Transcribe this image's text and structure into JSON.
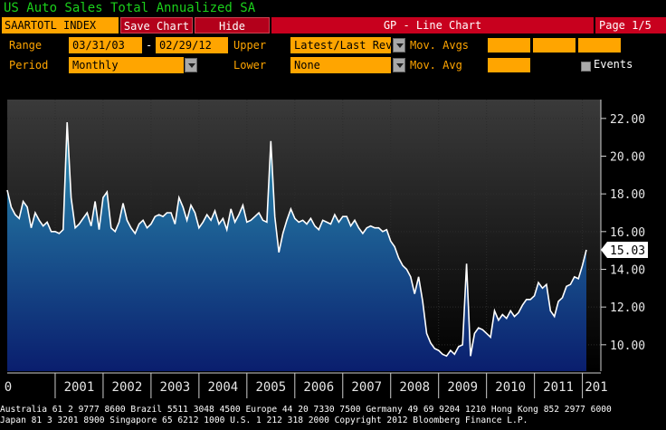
{
  "header": {
    "title": "US Auto Sales Total Annualized SA",
    "ticker": "SAARTOTL INDEX",
    "save_chart": "Save Chart",
    "hide": "Hide",
    "function": "GP - Line Chart",
    "page": "Page 1/5"
  },
  "controls": {
    "range_label": "Range",
    "start_date": "03/31/03",
    "dash": "-",
    "end_date": "02/29/12",
    "upper_label": "Upper",
    "upper_value": "Latest/Last Revi",
    "mov_avgs_label": "Mov. Avgs",
    "period_label": "Period",
    "period_value": "Monthly",
    "lower_label": "Lower",
    "lower_value": "None",
    "mov_avg_label": "Mov. Avg",
    "events_label": "Events"
  },
  "chart_data": {
    "type": "area",
    "line_color": "#ffffff",
    "fill_top_color": "#2a8fb0",
    "fill_bottom_color": "#0a1e6e",
    "ylim": [
      8.6,
      23.0
    ],
    "yticks": [
      "22.00",
      "20.00",
      "18.00",
      "16.00",
      "14.00",
      "12.00",
      "10.00"
    ],
    "ytick_values": [
      22,
      20,
      18,
      16,
      14,
      12,
      10
    ],
    "last_value_label": "15.03",
    "last_value": 15.03,
    "xtick_labels": [
      "0",
      "2001",
      "2002",
      "2003",
      "2004",
      "2005",
      "2006",
      "2007",
      "2008",
      "2009",
      "2010",
      "2011",
      "201"
    ],
    "x": [
      2000.0,
      2000.083,
      2000.167,
      2000.25,
      2000.333,
      2000.417,
      2000.5,
      2000.583,
      2000.667,
      2000.75,
      2000.833,
      2000.917,
      2001.0,
      2001.083,
      2001.167,
      2001.25,
      2001.333,
      2001.417,
      2001.5,
      2001.583,
      2001.667,
      2001.75,
      2001.833,
      2001.917,
      2002.0,
      2002.083,
      2002.167,
      2002.25,
      2002.333,
      2002.417,
      2002.5,
      2002.583,
      2002.667,
      2002.75,
      2002.833,
      2002.917,
      2003.0,
      2003.083,
      2003.167,
      2003.25,
      2003.333,
      2003.417,
      2003.5,
      2003.583,
      2003.667,
      2003.75,
      2003.833,
      2003.917,
      2004.0,
      2004.083,
      2004.167,
      2004.25,
      2004.333,
      2004.417,
      2004.5,
      2004.583,
      2004.667,
      2004.75,
      2004.833,
      2004.917,
      2005.0,
      2005.083,
      2005.167,
      2005.25,
      2005.333,
      2005.417,
      2005.5,
      2005.583,
      2005.667,
      2005.75,
      2005.833,
      2005.917,
      2006.0,
      2006.083,
      2006.167,
      2006.25,
      2006.333,
      2006.417,
      2006.5,
      2006.583,
      2006.667,
      2006.75,
      2006.833,
      2006.917,
      2007.0,
      2007.083,
      2007.167,
      2007.25,
      2007.333,
      2007.417,
      2007.5,
      2007.583,
      2007.667,
      2007.75,
      2007.833,
      2007.917,
      2008.0,
      2008.083,
      2008.167,
      2008.25,
      2008.333,
      2008.417,
      2008.5,
      2008.583,
      2008.667,
      2008.75,
      2008.833,
      2008.917,
      2009.0,
      2009.083,
      2009.167,
      2009.25,
      2009.333,
      2009.417,
      2009.5,
      2009.583,
      2009.667,
      2009.75,
      2009.833,
      2009.917,
      2010.0,
      2010.083,
      2010.167,
      2010.25,
      2010.333,
      2010.417,
      2010.5,
      2010.583,
      2010.667,
      2010.75,
      2010.833,
      2010.917,
      2011.0,
      2011.083,
      2011.167,
      2011.25,
      2011.333,
      2011.417,
      2011.5,
      2011.583,
      2011.667,
      2011.75,
      2011.833,
      2011.917,
      2012.0,
      2012.083
    ],
    "values": [
      18.2,
      17.3,
      16.9,
      16.7,
      17.6,
      17.3,
      16.2,
      17.0,
      16.6,
      16.3,
      16.5,
      16.0,
      16.0,
      15.9,
      16.1,
      21.8,
      17.8,
      16.2,
      16.4,
      16.7,
      17.0,
      16.3,
      17.6,
      16.1,
      17.8,
      18.1,
      16.2,
      16.0,
      16.5,
      17.5,
      16.6,
      16.2,
      15.9,
      16.4,
      16.6,
      16.2,
      16.4,
      16.8,
      16.9,
      16.8,
      17.0,
      17.0,
      16.4,
      17.8,
      17.3,
      16.6,
      17.4,
      17.0,
      16.2,
      16.5,
      16.9,
      16.6,
      17.1,
      16.4,
      16.7,
      16.1,
      17.2,
      16.5,
      16.9,
      17.4,
      16.5,
      16.6,
      16.8,
      17.0,
      16.6,
      16.5,
      20.8,
      16.8,
      14.9,
      15.9,
      16.6,
      17.2,
      16.7,
      16.5,
      16.6,
      16.4,
      16.7,
      16.3,
      16.1,
      16.6,
      16.5,
      16.4,
      16.9,
      16.5,
      16.8,
      16.8,
      16.3,
      16.6,
      16.2,
      15.9,
      16.2,
      16.3,
      16.2,
      16.2,
      16.0,
      16.1,
      15.5,
      15.2,
      14.6,
      14.2,
      14.0,
      13.6,
      12.7,
      13.6,
      12.3,
      10.6,
      10.1,
      9.8,
      9.7,
      9.5,
      9.4,
      9.7,
      9.5,
      9.9,
      10.0,
      14.3,
      9.4,
      10.6,
      10.9,
      10.8,
      10.6,
      10.4,
      11.8,
      11.3,
      11.6,
      11.4,
      11.8,
      11.5,
      11.7,
      12.1,
      12.4,
      12.4,
      12.6,
      13.3,
      13.0,
      13.2,
      11.8,
      11.5,
      12.3,
      12.5,
      13.1,
      13.2,
      13.6,
      13.5,
      14.2,
      15.03
    ]
  },
  "footer": {
    "line1": "Australia 61 2 9777 8600 Brazil 5511 3048 4500 Europe 44 20 7330 7500 Germany 49 69 9204 1210 Hong Kong 852 2977 6000",
    "line2": "Japan 81 3 3201 8900         Singapore 65 6212 1000      U.S. 1 212 318 2000           Copyright 2012 Bloomberg Finance L.P."
  }
}
